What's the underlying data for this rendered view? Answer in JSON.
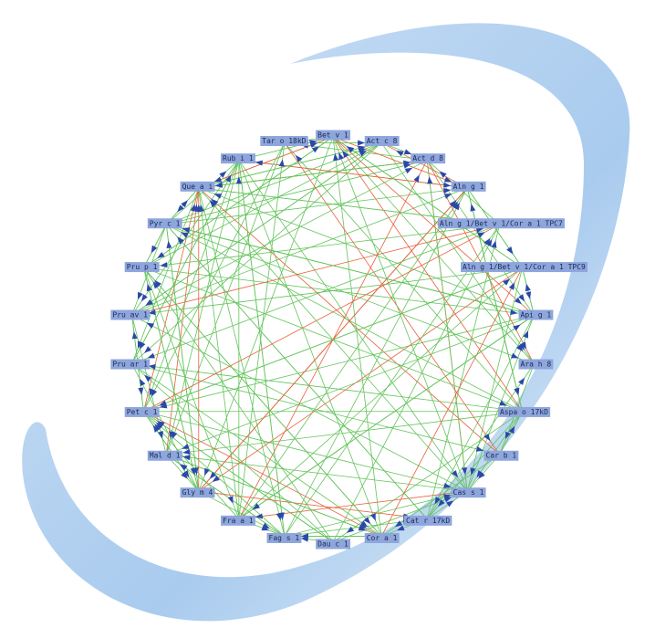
{
  "nodes": [
    {
      "label": "Bet v 1"
    },
    {
      "label": "Act c 8"
    },
    {
      "label": "Act d 8"
    },
    {
      "label": "Aln g 1"
    },
    {
      "label": "Aln g 1/Bet v 1/Cor a 1 TPC7"
    },
    {
      "label": "Aln g 1/Bet v 1/Cor a 1 TPC9"
    },
    {
      "label": "Api g 1"
    },
    {
      "label": "Ara h 8"
    },
    {
      "label": "Aspa o 17kD"
    },
    {
      "label": "Car b 1"
    },
    {
      "label": "Cas s 1"
    },
    {
      "label": "Cat r 17kD"
    },
    {
      "label": "Cor a 1"
    },
    {
      "label": "Dau c 1"
    },
    {
      "label": "Fag s 1"
    },
    {
      "label": "Fra a 1"
    },
    {
      "label": "Gly m 4"
    },
    {
      "label": "Mal d 1"
    },
    {
      "label": "Pet c 1"
    },
    {
      "label": "Pru ar 1"
    },
    {
      "label": "Pru av 1"
    },
    {
      "label": "Pru p 1"
    },
    {
      "label": "Pyr c 1"
    },
    {
      "label": "Que a i"
    },
    {
      "label": "Rub i 1"
    },
    {
      "label": "Tar o 18kD"
    }
  ]
}
